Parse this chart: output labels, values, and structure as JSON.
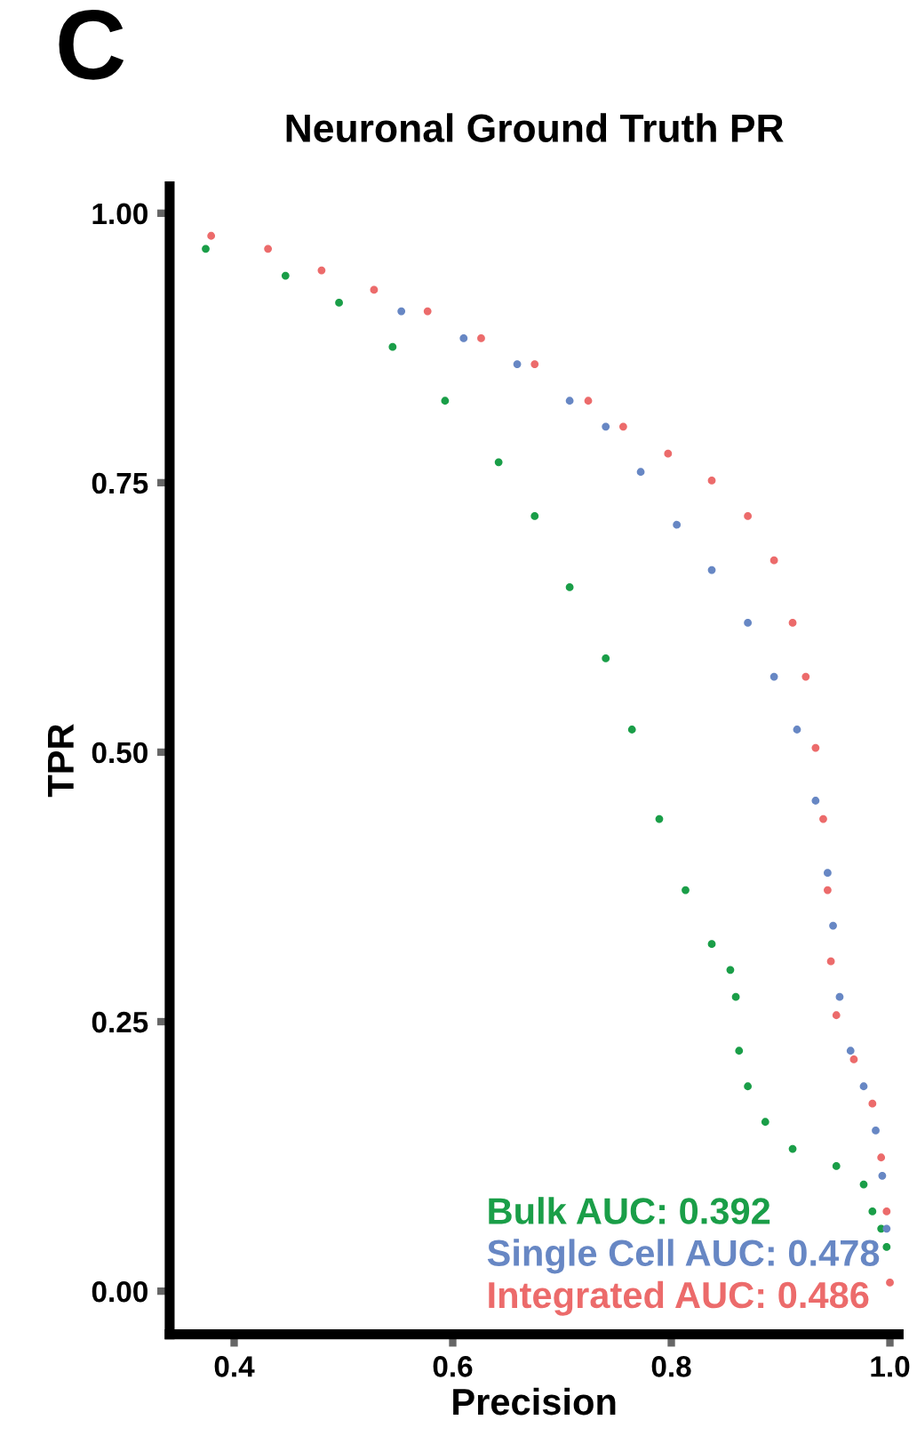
{
  "chart_data": {
    "type": "scatter",
    "title": "Neuronal Ground Truth PR",
    "xlabel": "Precision",
    "ylabel": "TPR",
    "annotations": [
      "C"
    ],
    "xlim": [
      0.341,
      1.008
    ],
    "ylim": [
      -0.04,
      1.025
    ],
    "xticks": [
      {
        "value": 0.4,
        "label": "0.4"
      },
      {
        "value": 0.6,
        "label": "0.6"
      },
      {
        "value": 0.8,
        "label": "0.8"
      },
      {
        "value": 1.0,
        "label": "1.0"
      }
    ],
    "yticks": [
      {
        "value": 0.0,
        "label": "0.00"
      },
      {
        "value": 0.25,
        "label": "0.25"
      },
      {
        "value": 0.5,
        "label": "0.50"
      },
      {
        "value": 0.75,
        "label": "0.75"
      },
      {
        "value": 1.0,
        "label": "1.00"
      }
    ],
    "grid": false,
    "legend": "bottom right",
    "marker": "circle",
    "series": [
      {
        "name": "Bulk AUC: 0.392",
        "color": "#1a9e48",
        "x": [
          0.374,
          0.447,
          0.496,
          0.545,
          0.593,
          0.642,
          0.675,
          0.707,
          0.74,
          0.764,
          0.789,
          0.813,
          0.837,
          0.854,
          0.859,
          0.862,
          0.87,
          0.886,
          0.911,
          0.951,
          0.976,
          0.984,
          0.992,
          0.997
        ],
        "values": [
          0.967,
          0.942,
          0.917,
          0.876,
          0.826,
          0.769,
          0.719,
          0.653,
          0.587,
          0.521,
          0.438,
          0.372,
          0.322,
          0.298,
          0.273,
          0.223,
          0.19,
          0.157,
          0.132,
          0.116,
          0.099,
          0.074,
          0.058,
          0.041
        ]
      },
      {
        "name": "Single Cell AUC: 0.478",
        "color": "#6787c4",
        "x": [
          0.553,
          0.61,
          0.659,
          0.707,
          0.74,
          0.772,
          0.805,
          0.837,
          0.87,
          0.894,
          0.915,
          0.932,
          0.943,
          0.948,
          0.954,
          0.964,
          0.976,
          0.987,
          0.993,
          0.997
        ],
        "values": [
          0.909,
          0.884,
          0.86,
          0.826,
          0.802,
          0.76,
          0.711,
          0.669,
          0.62,
          0.57,
          0.521,
          0.455,
          0.388,
          0.339,
          0.273,
          0.223,
          0.19,
          0.149,
          0.107,
          0.058
        ]
      },
      {
        "name": "Integrated AUC: 0.486",
        "color": "#ec6b6b",
        "x": [
          0.379,
          0.431,
          0.48,
          0.528,
          0.577,
          0.626,
          0.675,
          0.724,
          0.756,
          0.797,
          0.837,
          0.87,
          0.894,
          0.911,
          0.923,
          0.932,
          0.939,
          0.943,
          0.946,
          0.951,
          0.967,
          0.984,
          0.992,
          0.997,
          1.0
        ],
        "values": [
          0.979,
          0.967,
          0.947,
          0.929,
          0.909,
          0.884,
          0.86,
          0.826,
          0.802,
          0.777,
          0.752,
          0.719,
          0.678,
          0.62,
          0.57,
          0.504,
          0.438,
          0.372,
          0.306,
          0.256,
          0.215,
          0.174,
          0.124,
          0.074,
          0.008
        ]
      }
    ]
  }
}
